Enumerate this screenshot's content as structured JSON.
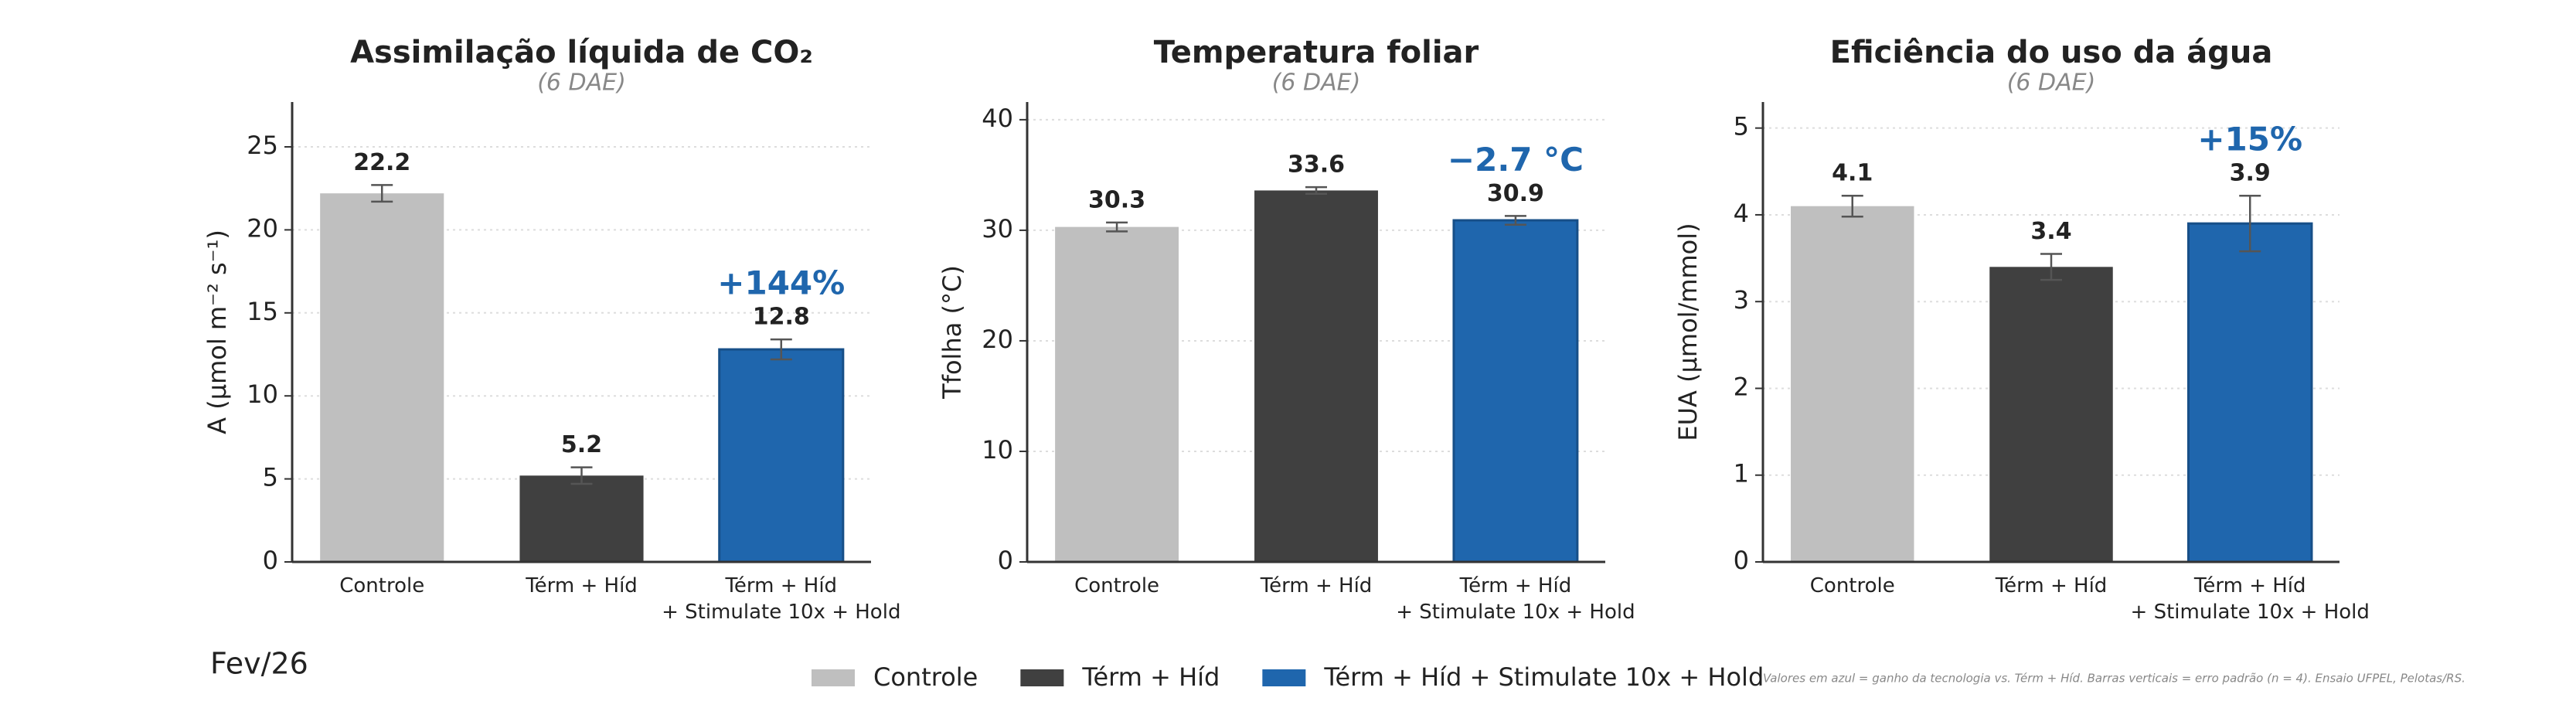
{
  "chart_data": [
    {
      "type": "bar",
      "title": "Assimilação líquida de CO₂",
      "subtitle": "(6 DAE)",
      "y_label": "A (µmol m⁻² s⁻¹)",
      "categories": [
        "Controle",
        "Térm + Híd",
        "Térm + Híd\n+ Stimulate 10x + Hold"
      ],
      "values": [
        22.2,
        5.2,
        12.8
      ],
      "errors": [
        0.5,
        0.5,
        0.6
      ],
      "colors": [
        "#bfbfbf",
        "#404040",
        "#1f66ad"
      ],
      "ylim": [
        0,
        27.7
      ],
      "yticks": [
        0,
        5,
        10,
        15,
        20,
        25
      ],
      "grid": true,
      "annotation": {
        "text": "+144%",
        "color": "#1f66ad"
      }
    },
    {
      "type": "bar",
      "title": "Temperatura foliar",
      "subtitle": "(6 DAE)",
      "y_label": "Tfolha (°C)",
      "categories": [
        "Controle",
        "Térm + Híd",
        "Térm + Híd\n+ Stimulate 10x + Hold"
      ],
      "values": [
        30.3,
        33.6,
        30.9
      ],
      "errors": [
        0.4,
        0.3,
        0.4
      ],
      "colors": [
        "#bfbfbf",
        "#404040",
        "#1f66ad"
      ],
      "ylim": [
        0,
        41.6
      ],
      "yticks": [
        0,
        10,
        20,
        30,
        40
      ],
      "grid": true,
      "annotation": {
        "text": "−2.7 °C",
        "color": "#1f66ad"
      }
    },
    {
      "type": "bar",
      "title": "Eficiência do uso da água",
      "subtitle": "(6 DAE)",
      "y_label": "EUA (µmol/mmol)",
      "categories": [
        "Controle",
        "Térm + Híd",
        "Térm + Híd\n+ Stimulate 10x + Hold"
      ],
      "values": [
        4.1,
        3.4,
        3.9
      ],
      "errors": [
        0.12,
        0.15,
        0.32
      ],
      "colors": [
        "#bfbfbf",
        "#404040",
        "#1f66ad"
      ],
      "ylim": [
        0,
        5.3
      ],
      "yticks": [
        0,
        1,
        2,
        3,
        4,
        5
      ],
      "grid": true,
      "annotation": {
        "text": "+15%",
        "color": "#1f66ad"
      }
    }
  ],
  "legend": {
    "items": [
      {
        "name": "Controle",
        "color": "#bfbfbf"
      },
      {
        "name": "Térm + Híd",
        "color": "#404040"
      },
      {
        "name": "Térm + Híd + Stimulate 10x + Hold",
        "color": "#1f66ad"
      }
    ]
  },
  "footnote": "Valores em azul = ganho da tecnologia vs. Térm + Híd. Barras verticais = erro padrão (n = 4). Ensaio UFPEL, Pelotas/RS.",
  "date": "Fev/26"
}
